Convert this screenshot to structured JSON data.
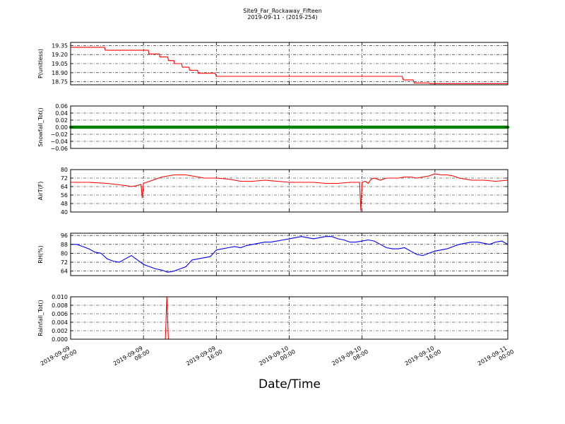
{
  "figure": {
    "title": "Site9_Far_Rockaway_Fifteen",
    "subtitle": "2019-09-11 - (2019-254)",
    "xlabel": "Date/Time"
  },
  "chart_data": [
    {
      "type": "line",
      "name": "P(unitless)",
      "ylabel": "P(unitless)",
      "color": "#ff0000",
      "ylim": [
        18.7,
        19.4
      ],
      "yticks": [
        "19.35",
        "19.20",
        "19.05",
        "18.90",
        "18.75"
      ],
      "ytick_values": [
        19.35,
        19.2,
        19.05,
        18.9,
        18.75
      ],
      "x_hours": [
        0,
        5.6,
        5.7,
        12.8,
        12.9,
        14.6,
        14.7,
        16.0,
        16.1,
        17.0,
        17.1,
        18.3,
        18.4,
        19.5,
        19.6,
        20.9,
        21.0,
        23.8,
        24.0,
        54.6,
        54.8,
        56.4,
        56.6,
        59.0,
        59.2,
        72.0
      ],
      "values": [
        19.32,
        19.32,
        19.27,
        19.27,
        19.21,
        19.21,
        19.16,
        19.16,
        19.1,
        19.1,
        19.05,
        19.05,
        18.99,
        18.99,
        18.94,
        18.94,
        18.89,
        18.89,
        18.84,
        18.84,
        18.78,
        18.78,
        18.73,
        18.73,
        18.72,
        18.72
      ]
    },
    {
      "type": "scatter",
      "name": "Snowfall_Tot()",
      "ylabel": "Snowfall_Tot()",
      "color": "#008000",
      "ylim": [
        -0.06,
        0.06
      ],
      "yticks": [
        "0.06",
        "0.04",
        "0.02",
        "0.00",
        "−0.02",
        "−0.04",
        "−0.06"
      ],
      "ytick_values": [
        0.06,
        0.04,
        0.02,
        0,
        -0.02,
        -0.04,
        -0.06
      ],
      "x_range_hours": [
        0,
        72
      ],
      "constant_value": 0.0
    },
    {
      "type": "line",
      "name": "AirT(F)",
      "ylabel": "AirT(F)",
      "color": "#ff0000",
      "ylim": [
        40,
        80
      ],
      "yticks": [
        "80",
        "72",
        "64",
        "56",
        "48",
        "40"
      ],
      "ytick_values": [
        80,
        72,
        64,
        56,
        48,
        40
      ],
      "x_hours": [
        0,
        3,
        6,
        9,
        10,
        11,
        11.6,
        11.8,
        12,
        13,
        14,
        15,
        16,
        17,
        18,
        19,
        20,
        21,
        22,
        24,
        26,
        27,
        28,
        30,
        32,
        34,
        36,
        38,
        40,
        42,
        44,
        46,
        47.6,
        47.8,
        48,
        48.5,
        49,
        49.5,
        50,
        51,
        52,
        53,
        54,
        55,
        56,
        57,
        58,
        59,
        60,
        61,
        62,
        63,
        64,
        65,
        66,
        68,
        70,
        72
      ],
      "values": [
        68,
        68,
        67,
        65,
        64,
        65,
        66,
        53,
        67,
        69,
        71,
        73,
        74,
        75,
        75,
        75,
        74,
        73,
        72,
        72,
        71,
        70,
        69,
        69,
        70,
        69,
        68,
        68,
        68,
        67,
        67,
        68,
        68,
        41,
        68,
        69,
        67,
        71,
        72,
        70,
        72,
        72,
        72,
        73,
        73,
        72,
        73,
        74,
        76,
        75,
        75,
        74,
        72,
        71,
        70,
        70,
        69,
        70
      ]
    },
    {
      "type": "line",
      "name": "RH(%)",
      "ylabel": "RH(%)",
      "color": "#0000ff",
      "ylim": [
        60,
        98
      ],
      "yticks": [
        "96",
        "88",
        "80",
        "72",
        "64"
      ],
      "ytick_values": [
        96,
        88,
        80,
        72,
        64
      ],
      "x_hours": [
        0,
        1,
        2,
        3,
        4,
        5,
        6,
        7,
        8,
        9,
        10,
        11,
        12,
        13,
        14,
        15,
        16,
        17,
        18,
        19,
        20,
        21,
        22,
        23,
        24,
        25,
        26,
        27,
        28,
        29,
        30,
        31,
        32,
        33,
        34,
        35,
        36,
        37,
        38,
        39,
        40,
        41,
        42,
        43,
        44,
        45,
        46,
        47,
        48,
        49,
        50,
        51,
        52,
        53,
        54,
        55,
        56,
        57,
        58,
        59,
        60,
        61,
        62,
        63,
        64,
        65,
        66,
        67,
        68,
        69,
        70,
        71,
        72
      ],
      "values": [
        88,
        88,
        86,
        84,
        81,
        80,
        75,
        73,
        72,
        75,
        78,
        74,
        70,
        68,
        66,
        65,
        63,
        64,
        66,
        68,
        74,
        75,
        76,
        77,
        83,
        84,
        85,
        86,
        85,
        87,
        88,
        89,
        90,
        90,
        91,
        92,
        93,
        94,
        95,
        94,
        93,
        94,
        95,
        95,
        93,
        92,
        90,
        90,
        91,
        92,
        91,
        88,
        85,
        84,
        84,
        85,
        82,
        79,
        78,
        80,
        82,
        83,
        84,
        86,
        88,
        89,
        90,
        90,
        89,
        88,
        90,
        91,
        88
      ]
    },
    {
      "type": "line",
      "name": "Rainfall_Tot()",
      "ylabel": "Rainfall_Tot()",
      "color": "#ff0000",
      "ylim": [
        0,
        0.01
      ],
      "yticks": [
        "0.010",
        "0.008",
        "0.006",
        "0.004",
        "0.002",
        "0.000"
      ],
      "ytick_values": [
        0.01,
        0.008,
        0.006,
        0.004,
        0.002,
        0.0
      ],
      "x_hours": [
        0,
        15.6,
        15.85,
        16.1,
        72
      ],
      "values": [
        0,
        0,
        0.01,
        0,
        0
      ]
    }
  ],
  "x_axis": {
    "range_hours": [
      0,
      72
    ],
    "grid": "dash-dot",
    "ticks": [
      {
        "hour": 0,
        "line1": "2019-09-09",
        "line2": "00:00"
      },
      {
        "hour": 12,
        "line1": "2019-09-09",
        "line2": "08:00"
      },
      {
        "hour": 24,
        "line1": "2019-09-09",
        "line2": "16:00"
      },
      {
        "hour": 36,
        "line1": "2019-09-10",
        "line2": "00:00"
      },
      {
        "hour": 48,
        "line1": "2019-09-10",
        "line2": "08:00"
      },
      {
        "hour": 60,
        "line1": "2019-09-10",
        "line2": "16:00"
      },
      {
        "hour": 72,
        "line1": "2019-09-11",
        "line2": "00:00"
      }
    ]
  }
}
